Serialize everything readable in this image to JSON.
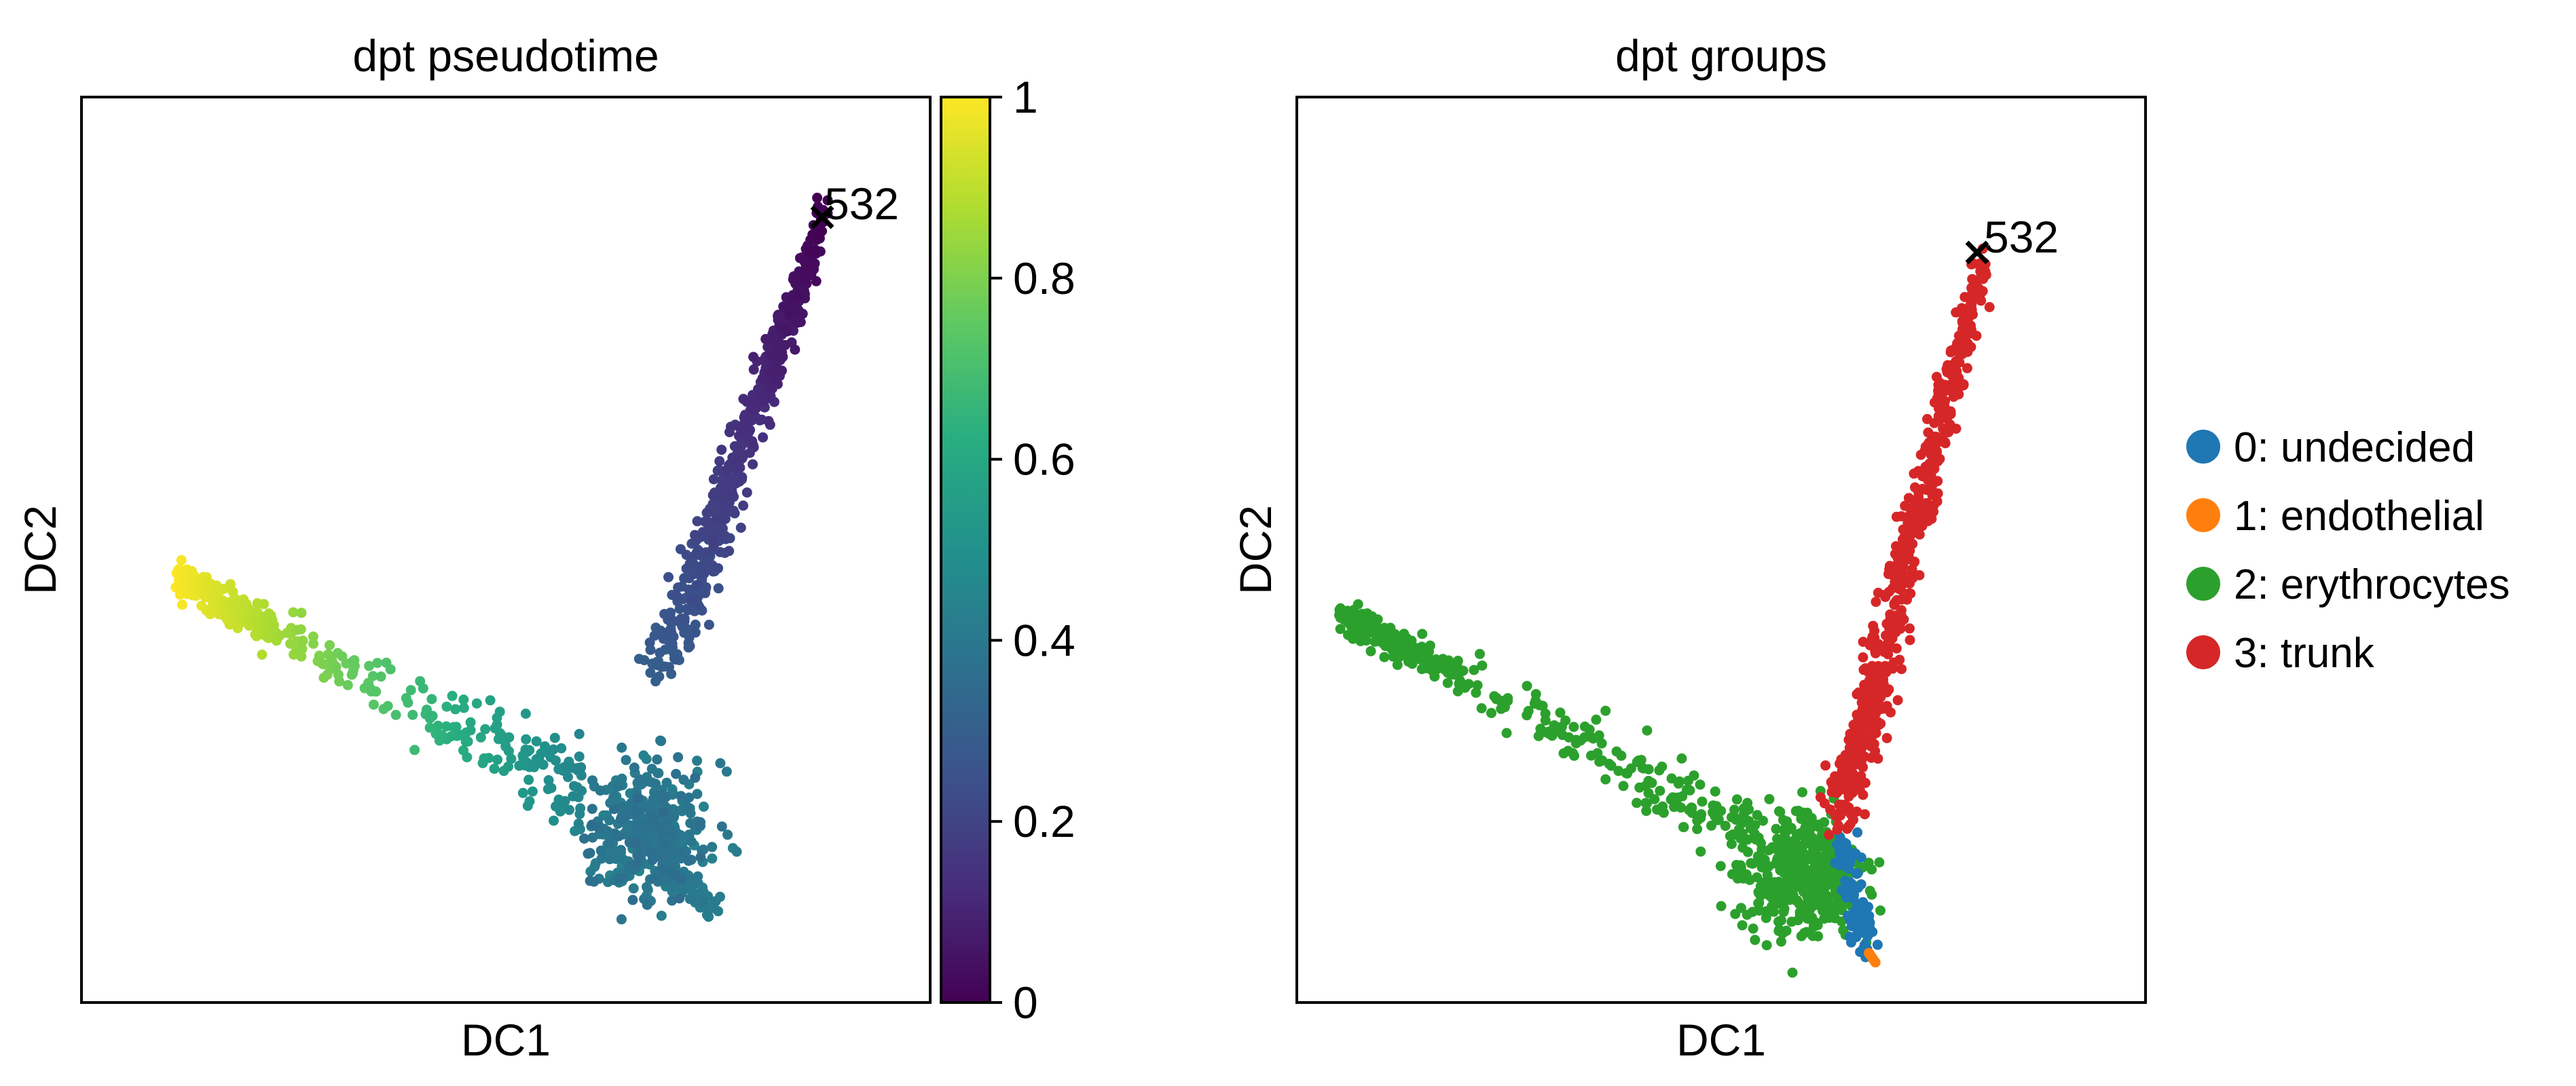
{
  "figure": {
    "panels": [
      {
        "title": "dpt pseudotime",
        "xlabel": "DC1",
        "ylabel": "DC2",
        "annotation": "532",
        "colorbar": {
          "ticks": [
            "0",
            "0.2",
            "0.4",
            "0.6",
            "0.8",
            "1"
          ],
          "colormap": "viridis"
        }
      },
      {
        "title": "dpt groups",
        "xlabel": "DC1",
        "ylabel": "DC2",
        "annotation": "532",
        "legend": [
          {
            "label": "0: undecided",
            "color": "#1f77b4"
          },
          {
            "label": "1: endothelial",
            "color": "#ff7f0e"
          },
          {
            "label": "2: erythrocytes",
            "color": "#2ca02c"
          },
          {
            "label": "3: trunk",
            "color": "#d62728"
          }
        ]
      }
    ]
  },
  "chart_data": [
    {
      "type": "scatter",
      "title": "dpt pseudotime",
      "xlabel": "DC1",
      "ylabel": "DC2",
      "xticks": "none",
      "yticks": "none",
      "grid": false,
      "color_by": "pseudotime",
      "colorbar_range": [
        0,
        1
      ],
      "colorbar_ticks": [
        0,
        0.2,
        0.4,
        0.6,
        0.8,
        1
      ],
      "root_cell": {
        "label": "532",
        "x": 0.875,
        "y": 0.865,
        "marker": "x"
      },
      "structures": [
        {
          "kind": "trunk",
          "from": [
            0.875,
            0.865
          ],
          "to": [
            0.68,
            0.36
          ],
          "pseudotime": [
            0.0,
            0.3
          ]
        },
        {
          "kind": "dense-cluster",
          "center": [
            0.67,
            0.19
          ],
          "pseudotime": 0.4
        },
        {
          "kind": "tail",
          "from": [
            0.68,
            0.16
          ],
          "to": [
            0.745,
            0.1
          ],
          "pseudotime": [
            0.38,
            0.42
          ]
        },
        {
          "kind": "branch",
          "from": [
            0.59,
            0.23
          ],
          "to": [
            0.11,
            0.47
          ],
          "pseudotime": [
            0.45,
            1.0
          ]
        }
      ]
    },
    {
      "type": "scatter",
      "title": "dpt groups",
      "xlabel": "DC1",
      "ylabel": "DC2",
      "xticks": "none",
      "yticks": "none",
      "grid": false,
      "color_by": "dpt group",
      "legend_position": "right",
      "root_cell": {
        "label": "532",
        "x": 0.81,
        "y": 0.825,
        "marker": "x"
      },
      "categories": [
        "0: undecided",
        "1: endothelial",
        "2: erythrocytes",
        "3: trunk"
      ],
      "structures": [
        {
          "kind": "trunk",
          "group": "3: trunk",
          "from": [
            0.81,
            0.825
          ],
          "to": [
            0.64,
            0.2
          ]
        },
        {
          "kind": "dense-cluster",
          "group": "2: erythrocytes",
          "center": [
            0.6,
            0.14
          ]
        },
        {
          "kind": "branch",
          "group": "2: erythrocytes",
          "from": [
            0.55,
            0.18
          ],
          "to": [
            0.05,
            0.43
          ]
        },
        {
          "kind": "tail",
          "group": "0: undecided",
          "from": [
            0.64,
            0.18
          ],
          "to": [
            0.67,
            0.06
          ]
        },
        {
          "kind": "tip",
          "group": "1: endothelial",
          "from": [
            0.67,
            0.06
          ],
          "to": [
            0.685,
            0.04
          ]
        }
      ]
    }
  ]
}
